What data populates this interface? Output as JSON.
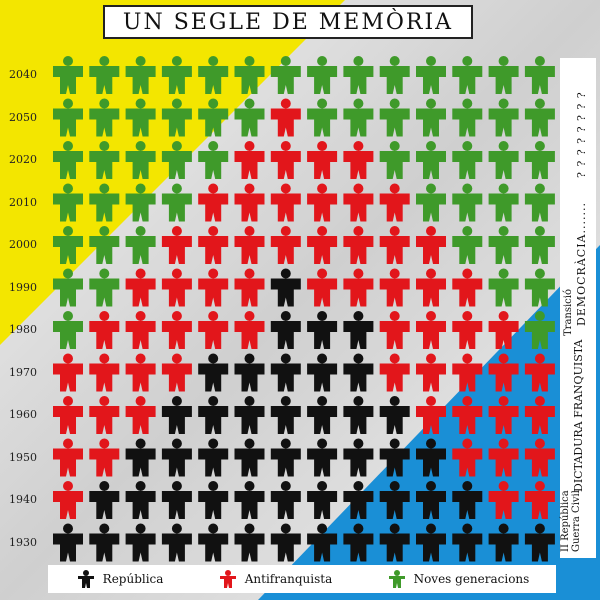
{
  "title": "UN SEGLE DE MEMÒRIA",
  "years": [
    "2040",
    "2050",
    "2020",
    "2010",
    "2000",
    "1990",
    "1980",
    "1970",
    "1960",
    "1950",
    "1940",
    "1930"
  ],
  "legend": [
    {
      "label": "República",
      "color": "#111111"
    },
    {
      "label": "Antifranquista",
      "color": "#e2161b"
    },
    {
      "label": "Noves generacions",
      "color": "#3f9a2a"
    }
  ],
  "side_labels": {
    "ii_republica": "II República",
    "guerra_civil": "Guerra Civil",
    "dictadura": "DICTADURA FRANQUISTA",
    "transicio": "Transició",
    "democracia": "DEMOCRÀCIA.......",
    "unknown": "? ? ? ? ? ? ? ?"
  },
  "colors": {
    "black": "#111111",
    "red": "#e2161b",
    "green": "#3f9a2a",
    "yellow": "#f3e600",
    "blue": "#1a8fd6",
    "silver": "#c9c9c9"
  },
  "grid": [
    "GGGGGGGGGGGGGG",
    "GGGGGGRGGGGGGG",
    "GGGGGRRRRGGGGG",
    "GGGGRRRRRRGGGG",
    "GGGRRRRRRRRGGG",
    "GGRRRRBRRRRRGG",
    "GRRRRRBBBRRRRG",
    "RRRRBBBBBRRRRR",
    "RRRBBBBBBBRRRR",
    "RRBBBBBBBBBRRR",
    "RBBBBBBBBBBBRR",
    "BBBBBBBBBBBBBB"
  ]
}
